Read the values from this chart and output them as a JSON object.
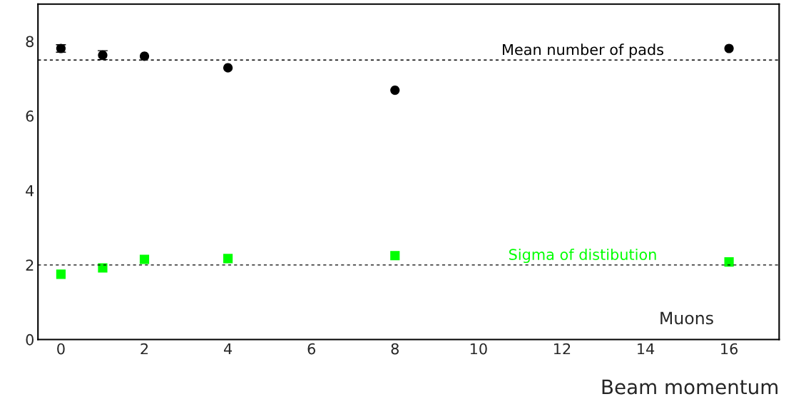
{
  "chart_data": {
    "type": "scatter",
    "xlabel": "Beam momentum",
    "x": [
      0,
      1,
      2,
      4,
      8,
      16
    ],
    "series": [
      {
        "color": "#000000",
        "marker": "circle",
        "values": [
          7.81,
          7.63,
          7.6,
          7.29,
          6.69,
          7.81
        ],
        "errors": [
          0.1,
          0.12,
          null,
          null,
          null,
          null
        ]
      },
      {
        "color": "#00ff00",
        "marker": "square",
        "values": [
          1.75,
          1.92,
          2.15,
          2.17,
          2.25,
          2.08
        ]
      }
    ],
    "xlim": [
      -0.55,
      17.2
    ],
    "xticks": [
      0,
      2,
      4,
      6,
      8,
      10,
      12,
      14,
      16
    ],
    "ylim": [
      0,
      9
    ],
    "yticks": [
      0,
      2,
      4,
      6,
      8
    ],
    "ref_lines": [
      {
        "axis": "y",
        "value": 7.5,
        "label": "Mean number of pads",
        "line_style": "dashed",
        "color": "#000000"
      },
      {
        "axis": "y",
        "value": 2,
        "label": "Sigma of distibution",
        "line_style": "dashed",
        "color": "#000000"
      }
    ],
    "annotations": [
      "Muons"
    ],
    "grid": false,
    "legend": false
  }
}
